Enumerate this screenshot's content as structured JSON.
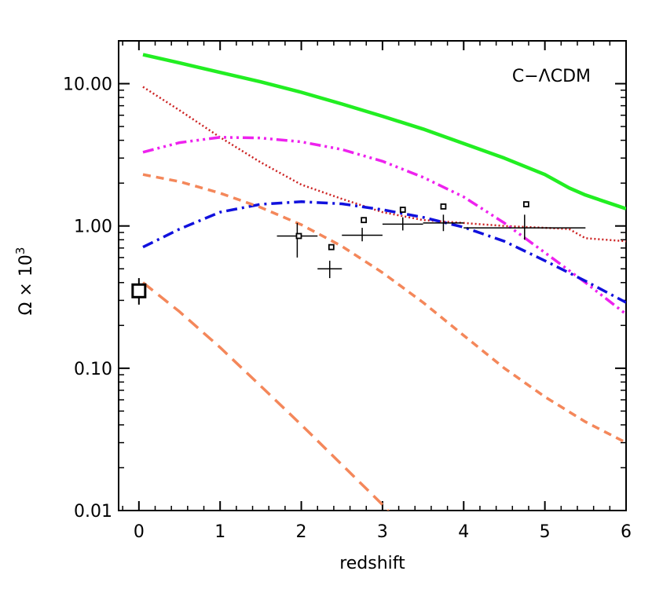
{
  "chart_data": {
    "type": "line",
    "xlabel": "redshift",
    "ylabel_main": "Ω × 10",
    "ylabel_exp": "3",
    "annotation": "C−ΛCDM",
    "xlim": [
      -0.25,
      6
    ],
    "ylim": [
      0.01,
      20
    ],
    "yscale": "log",
    "grid": false,
    "x_ticks": [
      0,
      1,
      2,
      3,
      4,
      5,
      6
    ],
    "x_tick_labels": [
      "0",
      "1",
      "2",
      "3",
      "4",
      "5",
      "6"
    ],
    "y_ticks": [
      0.01,
      0.1,
      1,
      10
    ],
    "y_tick_labels": [
      "0.01",
      "0.10",
      "1.00",
      "10.00"
    ],
    "colors": {
      "green": "#22ee22",
      "red": "#cc2222",
      "magenta": "#ee22ee",
      "blue": "#1111dd",
      "orange": "#f4875a",
      "black": "#000000"
    },
    "series": [
      {
        "color": "green",
        "style": "solid",
        "width": 4.5,
        "x": [
          0.05,
          0.5,
          1.0,
          1.5,
          2.0,
          2.5,
          3.0,
          3.5,
          4.0,
          4.5,
          5.0,
          5.3,
          5.5,
          6.0
        ],
        "y": [
          16.0,
          14.0,
          12.0,
          10.3,
          8.7,
          7.2,
          5.9,
          4.8,
          3.8,
          3.0,
          2.3,
          1.85,
          1.65,
          1.32
        ]
      },
      {
        "color": "red",
        "style": "dotted",
        "width": 2.5,
        "x": [
          0.05,
          0.5,
          1.0,
          1.5,
          2.0,
          2.5,
          3.0,
          3.5,
          4.0,
          4.5,
          5.0,
          5.3,
          5.5,
          6.0
        ],
        "y": [
          9.5,
          6.5,
          4.2,
          2.8,
          1.95,
          1.55,
          1.25,
          1.1,
          1.05,
          1.0,
          0.97,
          0.95,
          0.82,
          0.78
        ]
      },
      {
        "color": "magenta",
        "style": "dashdotdot",
        "width": 3.5,
        "x": [
          0.05,
          0.5,
          1.0,
          1.5,
          2.0,
          2.5,
          3.0,
          3.5,
          4.0,
          4.5,
          5.0,
          5.5,
          6.0
        ],
        "y": [
          3.3,
          3.85,
          4.2,
          4.15,
          3.9,
          3.45,
          2.85,
          2.2,
          1.6,
          1.05,
          0.65,
          0.4,
          0.24
        ]
      },
      {
        "color": "blue",
        "style": "dashdot",
        "width": 3.5,
        "x": [
          0.05,
          0.5,
          1.0,
          1.5,
          2.0,
          2.5,
          3.0,
          3.5,
          4.0,
          4.5,
          5.0,
          5.5,
          6.0
        ],
        "y": [
          0.71,
          0.95,
          1.25,
          1.42,
          1.48,
          1.43,
          1.3,
          1.15,
          0.98,
          0.78,
          0.57,
          0.41,
          0.29
        ]
      },
      {
        "color": "orange",
        "style": "shortdash",
        "width": 3.5,
        "x": [
          0.05,
          0.5,
          1.0,
          1.5,
          2.0,
          2.5,
          3.0,
          3.5,
          4.0,
          4.5,
          5.0,
          5.5,
          6.0
        ],
        "y": [
          2.3,
          2.05,
          1.7,
          1.35,
          1.02,
          0.72,
          0.47,
          0.29,
          0.17,
          0.1,
          0.063,
          0.042,
          0.03
        ]
      },
      {
        "color": "orange",
        "style": "longdash",
        "width": 3.5,
        "x": [
          0.05,
          0.5,
          1.0,
          1.5,
          2.0,
          2.5,
          3.0,
          3.1
        ],
        "y": [
          0.4,
          0.25,
          0.14,
          0.075,
          0.04,
          0.021,
          0.011,
          0.0095
        ]
      }
    ],
    "points_cross": [
      {
        "x": 1.95,
        "y": 0.85,
        "xerr": 0.25,
        "yerr_lo": 0.6,
        "yerr_hi": 1.05
      },
      {
        "x": 2.35,
        "y": 0.5,
        "xerr": 0.15,
        "yerr_lo": 0.43,
        "yerr_hi": 0.57
      },
      {
        "x": 2.75,
        "y": 0.86,
        "xerr": 0.25,
        "yerr_lo": 0.78,
        "yerr_hi": 0.97
      },
      {
        "x": 3.25,
        "y": 1.03,
        "xerr": 0.25,
        "yerr_lo": 0.93,
        "yerr_hi": 1.15
      },
      {
        "x": 3.75,
        "y": 1.05,
        "xerr": 0.25,
        "yerr_lo": 0.92,
        "yerr_hi": 1.2
      },
      {
        "x": 4.75,
        "y": 0.97,
        "xerr": 0.75,
        "yerr_lo": 0.8,
        "yerr_hi": 1.2
      }
    ],
    "points_square": [
      {
        "x": 1.97,
        "y": 0.85
      },
      {
        "x": 2.37,
        "y": 0.71
      },
      {
        "x": 2.77,
        "y": 1.1
      },
      {
        "x": 3.25,
        "y": 1.3
      },
      {
        "x": 3.75,
        "y": 1.37
      },
      {
        "x": 4.77,
        "y": 1.42
      }
    ],
    "point_big_square": {
      "x": 0.0,
      "y": 0.35,
      "yerr_lo": 0.28,
      "yerr_hi": 0.43
    }
  }
}
